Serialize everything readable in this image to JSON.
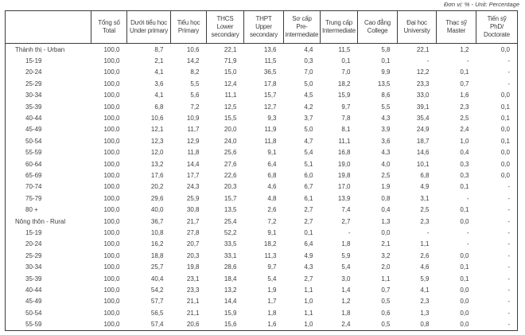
{
  "meta": {
    "unit_label": "Đơn vị: % - Unit: Percentage"
  },
  "table": {
    "columns": [
      {
        "vi": "Tổng số",
        "en": "Total"
      },
      {
        "vi": "Dưới tiểu học",
        "en": "Under primary"
      },
      {
        "vi": "Tiểu học",
        "en": "Primary"
      },
      {
        "vi": "THCS",
        "en": "Lower secondary"
      },
      {
        "vi": "THPT",
        "en": "Upper secondary"
      },
      {
        "vi": "Sơ cấp",
        "en": "Pre-intermediate"
      },
      {
        "vi": "Trung cấp",
        "en": "Intermediate"
      },
      {
        "vi": "Cao đẳng",
        "en": "College"
      },
      {
        "vi": "Đại học",
        "en": "University"
      },
      {
        "vi": "Thạc sỹ",
        "en": "Master"
      },
      {
        "vi": "Tiến sỹ",
        "en": "PhD/ Doctorate"
      }
    ],
    "rows": [
      {
        "label": "Thành thị - Urban",
        "group": true,
        "values": [
          "100,0",
          "8,7",
          "10,6",
          "22,1",
          "13,6",
          "4,4",
          "11,5",
          "5,8",
          "22,1",
          "1,2",
          "0,0"
        ]
      },
      {
        "label": "15-19",
        "group": false,
        "values": [
          "100,0",
          "2,1",
          "14,2",
          "71,9",
          "11,5",
          "0,3",
          "0,1",
          "0,1",
          "-",
          "-",
          "-"
        ]
      },
      {
        "label": "20-24",
        "group": false,
        "values": [
          "100,0",
          "4,1",
          "8,2",
          "15,0",
          "36,5",
          "7,0",
          "7,0",
          "9,9",
          "12,2",
          "0,1",
          "-"
        ]
      },
      {
        "label": "25-29",
        "group": false,
        "values": [
          "100,0",
          "3,6",
          "5,5",
          "12,4",
          "17,8",
          "5,0",
          "18,2",
          "13,5",
          "23,3",
          "0,7",
          "-"
        ]
      },
      {
        "label": "30-34",
        "group": false,
        "values": [
          "100,0",
          "4,1",
          "5,6",
          "11,1",
          "15,7",
          "4,5",
          "15,9",
          "8,6",
          "33,0",
          "1,6",
          "0,0"
        ]
      },
      {
        "label": "35-39",
        "group": false,
        "values": [
          "100,0",
          "6,8",
          "7,2",
          "12,5",
          "12,7",
          "4,2",
          "9,7",
          "5,5",
          "39,1",
          "2,3",
          "0,1"
        ]
      },
      {
        "label": "40-44",
        "group": false,
        "values": [
          "100,0",
          "10,6",
          "10,9",
          "15,5",
          "9,3",
          "3,7",
          "7,8",
          "4,3",
          "35,4",
          "2,5",
          "0,1"
        ]
      },
      {
        "label": "45-49",
        "group": false,
        "values": [
          "100,0",
          "12,1",
          "11,7",
          "20,0",
          "11,9",
          "5,0",
          "8,1",
          "3,9",
          "24,9",
          "2,4",
          "0,0"
        ]
      },
      {
        "label": "50-54",
        "group": false,
        "values": [
          "100,0",
          "12,3",
          "12,9",
          "24,0",
          "11,8",
          "4,7",
          "11,1",
          "3,6",
          "18,7",
          "1,0",
          "0,1"
        ]
      },
      {
        "label": "55-59",
        "group": false,
        "values": [
          "100,0",
          "12,0",
          "11,8",
          "25,6",
          "9,1",
          "5,4",
          "16,8",
          "4,3",
          "14,6",
          "0,4",
          "0,0"
        ]
      },
      {
        "label": "60-64",
        "group": false,
        "values": [
          "100,0",
          "13,2",
          "14,4",
          "27,6",
          "6,4",
          "5,1",
          "19,0",
          "4,0",
          "10,1",
          "0,3",
          "0,0"
        ]
      },
      {
        "label": "65-69",
        "group": false,
        "values": [
          "100,0",
          "17,6",
          "17,7",
          "22,6",
          "6,8",
          "6,0",
          "19,8",
          "2,5",
          "6,8",
          "0,3",
          "0,0"
        ]
      },
      {
        "label": "70-74",
        "group": false,
        "values": [
          "100,0",
          "20,2",
          "24,3",
          "20,3",
          "4,6",
          "6,7",
          "17,0",
          "1,9",
          "4,9",
          "0,1",
          "-"
        ]
      },
      {
        "label": "75-79",
        "group": false,
        "values": [
          "100,0",
          "29,6",
          "25,9",
          "15,7",
          "4,8",
          "6,1",
          "13,9",
          "0,8",
          "3,1",
          "-",
          "-"
        ]
      },
      {
        "label": "80 +",
        "group": false,
        "values": [
          "100,0",
          "40,0",
          "30,8",
          "13,5",
          "2,6",
          "2,7",
          "7,4",
          "0,4",
          "2,5",
          "0,1",
          "-"
        ]
      },
      {
        "label": "Nông thôn - Rural",
        "group": true,
        "values": [
          "100,0",
          "36,7",
          "21,7",
          "25,4",
          "7,2",
          "2,7",
          "2,7",
          "1,3",
          "2,3",
          "0,0",
          "-"
        ]
      },
      {
        "label": "15-19",
        "group": false,
        "values": [
          "100,0",
          "10,8",
          "27,8",
          "52,2",
          "9,1",
          "0,1",
          "-",
          "0,0",
          "-",
          "-",
          "-"
        ]
      },
      {
        "label": "20-24",
        "group": false,
        "values": [
          "100,0",
          "16,2",
          "20,7",
          "33,5",
          "18,2",
          "6,4",
          "1,8",
          "2,1",
          "1,1",
          "-",
          "-"
        ]
      },
      {
        "label": "25-29",
        "group": false,
        "values": [
          "100,0",
          "18,8",
          "20,3",
          "33,1",
          "11,3",
          "4,9",
          "5,9",
          "3,2",
          "2,6",
          "0,0",
          "-"
        ]
      },
      {
        "label": "30-34",
        "group": false,
        "values": [
          "100,0",
          "25,7",
          "19,8",
          "28,6",
          "9,7",
          "4,3",
          "5,4",
          "2,0",
          "4,6",
          "0,1",
          "-"
        ]
      },
      {
        "label": "35-39",
        "group": false,
        "values": [
          "100,0",
          "40,4",
          "23,1",
          "18,4",
          "5,4",
          "2,7",
          "3,0",
          "1,1",
          "5,9",
          "0,1",
          "-"
        ]
      },
      {
        "label": "40-44",
        "group": false,
        "values": [
          "100,0",
          "54,2",
          "23,3",
          "13,2",
          "1,9",
          "1,1",
          "1,4",
          "0,7",
          "4,1",
          "0,0",
          "-"
        ]
      },
      {
        "label": "45-49",
        "group": false,
        "values": [
          "100,0",
          "57,7",
          "21,1",
          "14,4",
          "1,7",
          "1,0",
          "1,2",
          "0,5",
          "2,3",
          "0,0",
          "-"
        ]
      },
      {
        "label": "50-54",
        "group": false,
        "values": [
          "100,0",
          "56,5",
          "21,1",
          "15,9",
          "1,8",
          "1,1",
          "1,8",
          "0,6",
          "1,3",
          "0,0",
          "-"
        ]
      },
      {
        "label": "55-59",
        "group": false,
        "values": [
          "100,0",
          "57,4",
          "20,6",
          "15,6",
          "1,6",
          "1,0",
          "2,4",
          "0,5",
          "0,8",
          "0,0",
          "-"
        ]
      }
    ]
  }
}
